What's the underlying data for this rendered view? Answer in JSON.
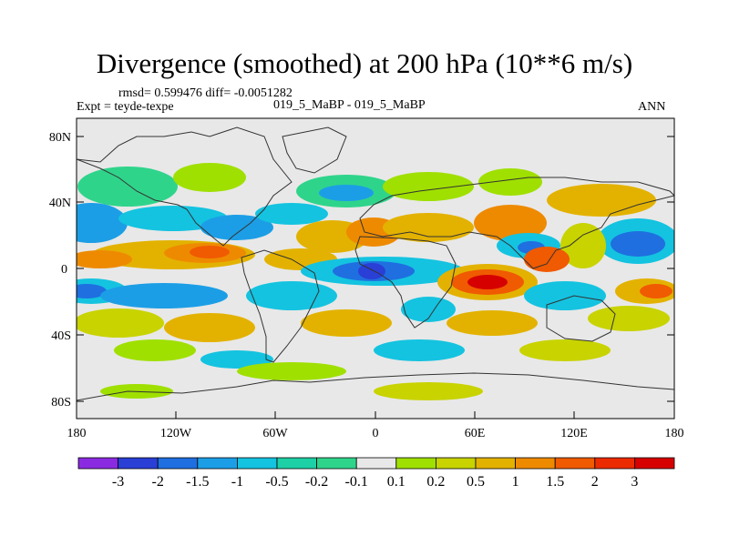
{
  "header": {
    "title": "Divergence (smoothed) at 200 hPa (10**6 m/s)",
    "stats": "rmsd= 0.599476 diff= -0.0051282",
    "experiment": "Expt = teyde-texpe",
    "center_label": "019_5_MaBP - 019_5_MaBP",
    "season": "ANN"
  },
  "map": {
    "lat_ticks": [
      "80N",
      "40N",
      "0",
      "40S",
      "80S"
    ],
    "lon_ticks": [
      "180",
      "120W",
      "60W",
      "0",
      "60E",
      "120E",
      "180"
    ]
  },
  "colorbar": {
    "labels": [
      "-3",
      "-2",
      "-1.5",
      "-1",
      "-0.5",
      "-0.2",
      "-0.1",
      "0.1",
      "0.2",
      "0.5",
      "1",
      "1.5",
      "2",
      "3"
    ],
    "colors": [
      "#8a2be2",
      "#2a3fd6",
      "#1f6fe0",
      "#1c9ee6",
      "#14c3e0",
      "#1ed0a6",
      "#2fd48b",
      "#e8e8e8",
      "#9fe000",
      "#c8d300",
      "#e3b200",
      "#ee8a00",
      "#f05a00",
      "#ec2a00",
      "#d60000"
    ]
  }
}
